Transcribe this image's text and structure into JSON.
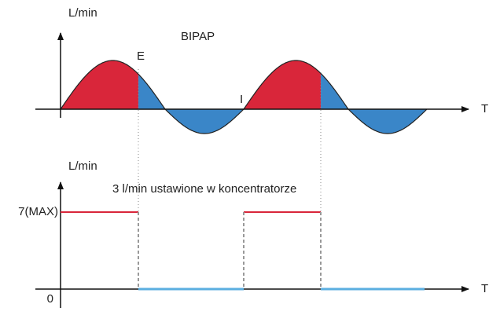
{
  "top": {
    "y_label": "L/min",
    "title": "BIPAP",
    "point_e": "E",
    "point_i": "I",
    "x_label": "T"
  },
  "bottom": {
    "y_label": "L/min",
    "note": "3 l/min ustawione w koncentratorze",
    "max_label": "7(MAX)",
    "zero_label": "0",
    "x_label": "T"
  }
}
